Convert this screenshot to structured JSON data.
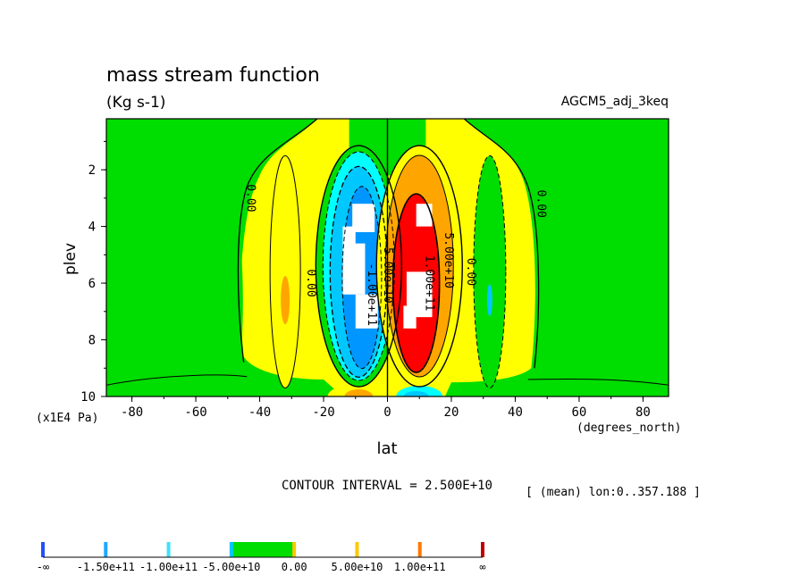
{
  "chart_data": {
    "type": "heatmap",
    "title": "mass stream function",
    "subtitle": "(Kg s-1)",
    "dataset": "AGCM5_adj_3keq",
    "xlabel": "lat",
    "xunits": "(degrees_north)",
    "ylabel": "plev",
    "yunits": "(x1E4 Pa)",
    "xlim": [
      -88,
      88
    ],
    "ylim": [
      10,
      0.2
    ],
    "xticks": [
      "-80",
      "-60",
      "-40",
      "-20",
      "0",
      "20",
      "40",
      "60",
      "80"
    ],
    "xtick_values": [
      -80,
      -60,
      -40,
      -20,
      0,
      20,
      40,
      60,
      80
    ],
    "yticks": [
      "2",
      "4",
      "6",
      "8",
      "10"
    ],
    "ytick_values": [
      2,
      4,
      6,
      8,
      10
    ],
    "contour_interval_text": "CONTOUR INTERVAL = 2.500E+10",
    "mean_text": "[ (mean) lon:0..357.188 ]",
    "contour_labels": [
      {
        "text": "0.00",
        "lat": -44,
        "plev": 3.0
      },
      {
        "text": "0.00",
        "lat": -25,
        "plev": 6.0
      },
      {
        "text": "-5.00e+10",
        "lat": -1,
        "plev": 5.6
      },
      {
        "text": "-1.00e+11",
        "lat": -6,
        "plev": 6.4
      },
      {
        "text": "5.00e+10",
        "lat": 18,
        "plev": 5.2
      },
      {
        "text": "1.00e+11",
        "lat": 12,
        "plev": 6.0
      },
      {
        "text": "0.00",
        "lat": 25,
        "plev": 5.6
      },
      {
        "text": "0.00",
        "lat": 47,
        "plev": 3.2
      }
    ],
    "features": [
      {
        "name": "southern-cell",
        "sign": "negative",
        "lat_range": [
          -20,
          0
        ],
        "plev_range": [
          2.0,
          9.2
        ],
        "min_value": "< -1.50e+11",
        "center": [
          -9,
          6.0
        ]
      },
      {
        "name": "northern-cell",
        "sign": "positive",
        "lat_range": [
          0,
          20
        ],
        "plev_range": [
          2.0,
          9.0
        ],
        "max_value": "> 1.50e+11",
        "center": [
          9,
          6.0
        ]
      },
      {
        "name": "southern-ferrel-cell",
        "sign": "positive",
        "lat_range": [
          -42,
          -22
        ],
        "plev_range": [
          2.0,
          9.4
        ],
        "max_value": "5.00e+10 to 1.00e+11",
        "center": [
          -32,
          6.5
        ]
      },
      {
        "name": "northern-ferrel-cell",
        "sign": "negative",
        "lat_range": [
          22,
          42
        ],
        "plev_range": [
          2.0,
          9.4
        ],
        "min_value": "-5.00e+10 to 0.00",
        "center": [
          32,
          6.5
        ]
      }
    ],
    "colorbar": {
      "labels": [
        "-∞",
        "-1.50e+11",
        "-1.00e+11",
        "-5.00e+10",
        "0.00",
        "5.00e+10",
        "1.00e+11",
        "∞"
      ],
      "colors": [
        "#0000ff",
        "#0096ff",
        "#00c8ff",
        "#00ffff",
        "#00dd00",
        "#ffff00",
        "#ffa500",
        "#ff0000"
      ],
      "accent_colors": [
        "#2050ff",
        "#20a8ff",
        "#40e0ff",
        "#00c8ff",
        "#ffc800",
        "#ffc800",
        "#ff7800",
        "#c00000"
      ]
    },
    "grid": false,
    "colors": {
      "green": "#00dd00",
      "yellow": "#ffff00",
      "orange": "#ffa500",
      "red": "#ff0000",
      "cyan": "#00ffff",
      "light_blue": "#00c8ff",
      "blue": "#0096ff",
      "white": "#ffffff"
    }
  }
}
